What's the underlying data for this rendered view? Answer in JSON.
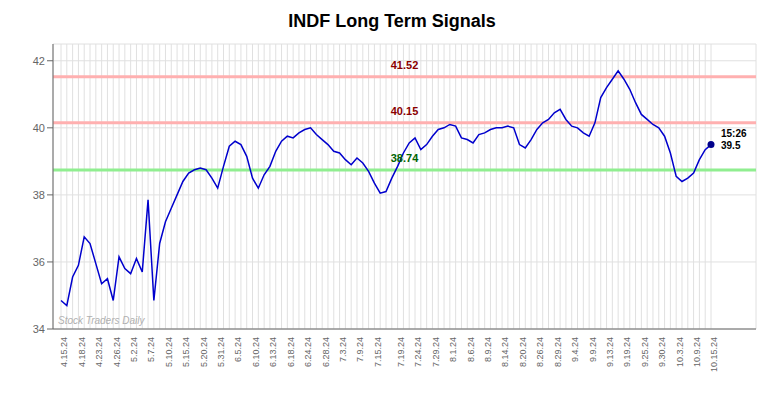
{
  "chart_data": {
    "type": "line",
    "title": "INDF Long Term Signals",
    "color": "#0000cd",
    "grid": true,
    "categories": [
      "4.15.24",
      null,
      null,
      "4.18.24",
      null,
      null,
      "4.23.24",
      null,
      null,
      "4.26.24",
      null,
      null,
      "5.2.24",
      null,
      null,
      "5.7.24",
      null,
      null,
      "5.10.24",
      null,
      null,
      "5.15.24",
      null,
      null,
      "5.20.24",
      null,
      null,
      "5.31.24",
      null,
      null,
      "6.5.24",
      null,
      null,
      "6.10.24",
      null,
      null,
      "6.13.24",
      null,
      null,
      "6.18.24",
      null,
      null,
      "6.24.24",
      null,
      null,
      "6.28.24",
      null,
      null,
      "7.3.24",
      null,
      null,
      "7.9.24",
      null,
      null,
      "7.15.24",
      null,
      null,
      null,
      "7.19.24",
      null,
      null,
      "7.24.24",
      null,
      null,
      "7.29.24",
      null,
      null,
      "8.1.24",
      null,
      null,
      "8.6.24",
      null,
      null,
      "8.9.24",
      null,
      null,
      "8.14.24",
      null,
      null,
      "8.20.24",
      null,
      null,
      "8.26.24",
      null,
      null,
      "8.29.24",
      null,
      null,
      "9.4.24",
      null,
      null,
      "9.9.24",
      null,
      null,
      "9.13.24",
      null,
      null,
      "9.19.24",
      null,
      null,
      "9.25.24",
      null,
      null,
      "9.30.24",
      null,
      null,
      "10.3.24",
      null,
      null,
      "10.9.24",
      null,
      null,
      "10.15.24"
    ],
    "values": [
      34.85,
      34.7,
      35.55,
      35.9,
      36.75,
      36.55,
      35.95,
      35.35,
      35.5,
      34.85,
      36.15,
      35.8,
      35.65,
      36.1,
      35.7,
      37.85,
      34.85,
      36.55,
      37.2,
      37.6,
      38.0,
      38.4,
      38.65,
      38.75,
      38.8,
      38.75,
      38.5,
      38.2,
      38.85,
      39.45,
      39.6,
      39.5,
      39.15,
      38.5,
      38.2,
      38.6,
      38.85,
      39.3,
      39.6,
      39.75,
      39.7,
      39.85,
      39.95,
      40.0,
      39.8,
      39.65,
      39.5,
      39.3,
      39.25,
      39.05,
      38.9,
      39.1,
      38.95,
      38.7,
      38.35,
      38.05,
      38.1,
      38.5,
      38.85,
      39.25,
      39.55,
      39.7,
      39.35,
      39.5,
      39.75,
      39.95,
      40.0,
      40.1,
      40.05,
      39.7,
      39.65,
      39.55,
      39.8,
      39.85,
      39.95,
      40.0,
      40.0,
      40.05,
      40.0,
      39.5,
      39.4,
      39.65,
      39.95,
      40.15,
      40.25,
      40.45,
      40.55,
      40.25,
      40.05,
      40.0,
      39.85,
      39.75,
      40.15,
      40.9,
      41.2,
      41.45,
      41.7,
      41.45,
      41.15,
      40.75,
      40.4,
      40.25,
      40.1,
      40.0,
      39.75,
      39.25,
      38.55,
      38.4,
      38.5,
      38.65,
      39.05,
      39.35,
      39.5
    ],
    "ylim": [
      34,
      42.5
    ],
    "yticks": [
      34,
      36,
      38,
      40,
      42
    ],
    "reference_lines": [
      {
        "value": 41.52,
        "label": "41.52",
        "color": "#ffb0b0",
        "label_color": "#8b0000"
      },
      {
        "value": 40.15,
        "label": "40.15",
        "color": "#ffb0b0",
        "label_color": "#8b0000"
      },
      {
        "value": 38.74,
        "label": "38.74",
        "color": "#90ee90",
        "label_color": "#006400"
      }
    ],
    "annotations": [
      {
        "text": "15:26\n39.5",
        "color": "#00008b"
      }
    ],
    "watermark": {
      "text": "Stock Traders Daily",
      "color": "#b0b0b0"
    }
  }
}
